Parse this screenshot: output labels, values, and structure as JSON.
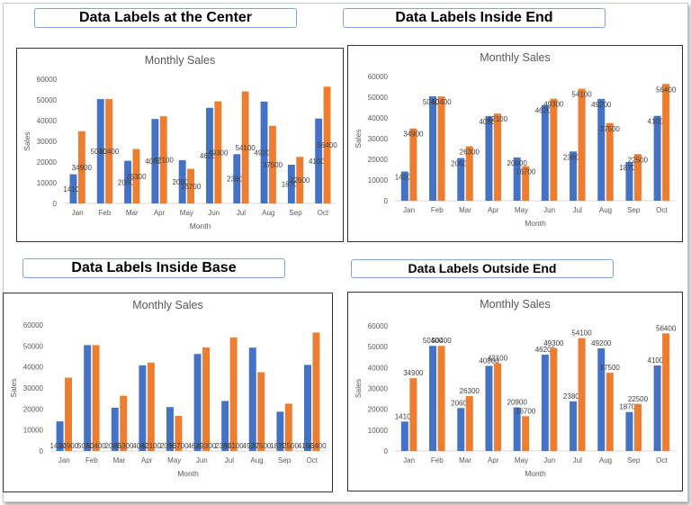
{
  "banners": {
    "center": "Data Labels at the Center",
    "inside_end": "Data Labels Inside End",
    "inside_base": "Data Labels Inside Base",
    "outside_end": "Data Labels Outside End"
  },
  "colors": {
    "series1": "#4472c4",
    "series2": "#ed7d31",
    "axis_text": "#595959",
    "grid": "#d9d9d9"
  },
  "chart_data": [
    {
      "type": "bar",
      "label_position": "center",
      "title": "Monthly Sales",
      "xlabel": "Month",
      "ylabel": "Sales",
      "ylim": [
        0,
        60000
      ],
      "yticks": [
        0,
        10000,
        20000,
        30000,
        40000,
        50000,
        60000
      ],
      "grid": false,
      "categories": [
        "Jan",
        "Feb",
        "Mar",
        "Apr",
        "May",
        "Jun",
        "Jul",
        "Aug",
        "Sep",
        "Oct"
      ],
      "series": [
        {
          "values": [
            14100,
            50400,
            20600,
            40800,
            20900,
            46200,
            23800,
            49200,
            18700,
            41000
          ]
        },
        {
          "values": [
            34900,
            50400,
            26300,
            42100,
            16700,
            49300,
            54100,
            37500,
            22500,
            56400
          ]
        }
      ]
    },
    {
      "type": "bar",
      "label_position": "inside_end",
      "title": "Monthly Sales",
      "xlabel": "Month",
      "ylabel": "Sales",
      "ylim": [
        0,
        60000
      ],
      "yticks": [
        0,
        10000,
        20000,
        30000,
        40000,
        50000,
        60000
      ],
      "grid": false,
      "categories": [
        "Jan",
        "Feb",
        "Mar",
        "Apr",
        "May",
        "Jun",
        "Jul",
        "Aug",
        "Sep",
        "Oct"
      ],
      "series": [
        {
          "values": [
            14100,
            50400,
            20600,
            40800,
            20900,
            46200,
            23800,
            49200,
            18700,
            41000
          ]
        },
        {
          "values": [
            34900,
            50400,
            26300,
            42100,
            16700,
            49300,
            54100,
            37500,
            22500,
            56400
          ]
        }
      ]
    },
    {
      "type": "bar",
      "label_position": "inside_base",
      "title": "Monthly Sales",
      "xlabel": "Month",
      "ylabel": "Sales",
      "ylim": [
        0,
        60000
      ],
      "yticks": [
        0,
        10000,
        20000,
        30000,
        40000,
        50000,
        60000
      ],
      "grid": false,
      "categories": [
        "Jan",
        "Feb",
        "Mar",
        "Apr",
        "May",
        "Jun",
        "Jul",
        "Aug",
        "Sep",
        "Oct"
      ],
      "series": [
        {
          "values": [
            14100,
            50400,
            20600,
            40800,
            20900,
            46200,
            23800,
            49200,
            18700,
            41000
          ]
        },
        {
          "values": [
            34900,
            50400,
            26300,
            42100,
            16700,
            49300,
            54100,
            37500,
            22500,
            56400
          ]
        }
      ]
    },
    {
      "type": "bar",
      "label_position": "outside_end",
      "title": "Monthly Sales",
      "xlabel": "Month",
      "ylabel": "Sales",
      "ylim": [
        0,
        60000
      ],
      "yticks": [
        0,
        10000,
        20000,
        30000,
        40000,
        50000,
        60000
      ],
      "grid": false,
      "categories": [
        "Jan",
        "Feb",
        "Mar",
        "Apr",
        "May",
        "Jun",
        "Jul",
        "Aug",
        "Sep",
        "Oct"
      ],
      "series": [
        {
          "values": [
            14100,
            50400,
            20600,
            40800,
            20900,
            46200,
            23800,
            49200,
            18700,
            41000
          ]
        },
        {
          "values": [
            34900,
            50400,
            26300,
            42100,
            16700,
            49300,
            54100,
            37500,
            22500,
            56400
          ]
        }
      ]
    }
  ]
}
